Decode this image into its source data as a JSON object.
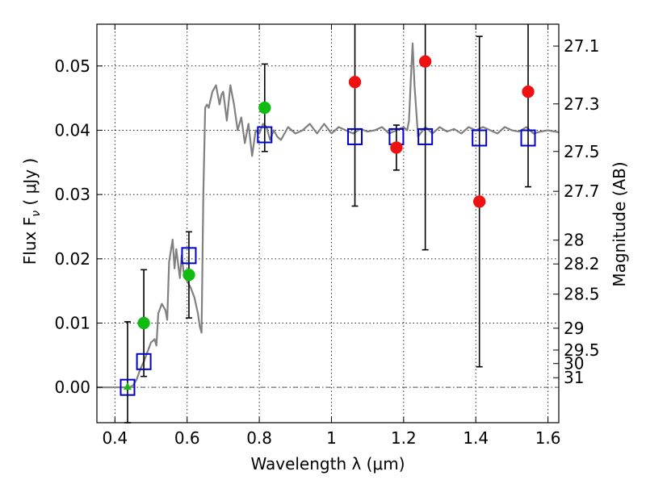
{
  "chart_data": {
    "type": "scatter",
    "xlabel": "Wavelength  λ (μm)",
    "ylabel": "Flux  F",
    "ylabel_sub": "ν",
    "ylabel_unit": " ( μJy )",
    "y2label": "Magnitude (AB)",
    "xlim": [
      0.35,
      1.63
    ],
    "ylim": [
      -0.0055,
      0.0565
    ],
    "grid": true,
    "x_ticks": [
      {
        "value": 0.4,
        "label": "0.4"
      },
      {
        "value": 0.6,
        "label": "0.6"
      },
      {
        "value": 0.8,
        "label": "0.8"
      },
      {
        "value": 1.0,
        "label": "1"
      },
      {
        "value": 1.2,
        "label": "1.2"
      },
      {
        "value": 1.4,
        "label": "1.4"
      },
      {
        "value": 1.6,
        "label": "1.6"
      }
    ],
    "y_ticks": [
      {
        "value": 0.0,
        "label": "0.00"
      },
      {
        "value": 0.01,
        "label": "0.01"
      },
      {
        "value": 0.02,
        "label": "0.02"
      },
      {
        "value": 0.03,
        "label": "0.03"
      },
      {
        "value": 0.04,
        "label": "0.04"
      },
      {
        "value": 0.05,
        "label": "0.05"
      }
    ],
    "y2_ticks": [
      {
        "flux": 0.0531,
        "label": "27.1"
      },
      {
        "flux": 0.0441,
        "label": "27.3"
      },
      {
        "flux": 0.0367,
        "label": "27.5"
      },
      {
        "flux": 0.0305,
        "label": "27.7"
      },
      {
        "flux": 0.0229,
        "label": "28"
      },
      {
        "flux": 0.0192,
        "label": "28.2"
      },
      {
        "flux": 0.0145,
        "label": "28.5"
      },
      {
        "flux": 0.0092,
        "label": "29"
      },
      {
        "flux": 0.0058,
        "label": "29.5"
      },
      {
        "flux": 0.0037,
        "label": "30"
      },
      {
        "flux": 0.0015,
        "label": "31"
      }
    ],
    "series": [
      {
        "name": "model-spectrum",
        "kind": "line",
        "color": "#808080",
        "x": [
          0.35,
          0.43,
          0.44,
          0.45,
          0.46,
          0.47,
          0.48,
          0.49,
          0.5,
          0.51,
          0.515,
          0.52,
          0.53,
          0.54,
          0.545,
          0.55,
          0.56,
          0.565,
          0.57,
          0.58,
          0.585,
          0.59,
          0.6,
          0.61,
          0.62,
          0.63,
          0.635,
          0.64,
          0.645,
          0.65,
          0.655,
          0.66,
          0.67,
          0.68,
          0.69,
          0.695,
          0.7,
          0.71,
          0.72,
          0.73,
          0.74,
          0.75,
          0.76,
          0.77,
          0.78,
          0.79,
          0.8,
          0.81,
          0.82,
          0.83,
          0.84,
          0.85,
          0.86,
          0.87,
          0.88,
          0.9,
          0.92,
          0.94,
          0.96,
          0.98,
          1.0,
          1.02,
          1.04,
          1.06,
          1.08,
          1.1,
          1.12,
          1.14,
          1.16,
          1.18,
          1.2,
          1.21,
          1.215,
          1.22,
          1.225,
          1.23,
          1.24,
          1.26,
          1.28,
          1.3,
          1.32,
          1.34,
          1.36,
          1.38,
          1.4,
          1.42,
          1.44,
          1.46,
          1.48,
          1.5,
          1.52,
          1.54,
          1.56,
          1.58,
          1.6,
          1.63
        ],
        "y": [
          0.0,
          0.0,
          0.0,
          0.0003,
          0.0012,
          0.0028,
          0.004,
          0.0055,
          0.007,
          0.0075,
          0.0065,
          0.0115,
          0.013,
          0.012,
          0.0105,
          0.0195,
          0.023,
          0.0185,
          0.0215,
          0.017,
          0.0205,
          0.018,
          0.0165,
          0.0155,
          0.014,
          0.0115,
          0.0095,
          0.0085,
          0.03,
          0.0435,
          0.044,
          0.0435,
          0.046,
          0.047,
          0.044,
          0.0455,
          0.046,
          0.0415,
          0.047,
          0.044,
          0.04,
          0.042,
          0.038,
          0.041,
          0.036,
          0.04,
          0.0395,
          0.041,
          0.0405,
          0.0385,
          0.04,
          0.039,
          0.0385,
          0.0395,
          0.0405,
          0.0395,
          0.04,
          0.041,
          0.0395,
          0.041,
          0.0395,
          0.0405,
          0.04,
          0.0395,
          0.0402,
          0.0398,
          0.04,
          0.0405,
          0.0395,
          0.04,
          0.0405,
          0.04,
          0.0415,
          0.048,
          0.0535,
          0.047,
          0.039,
          0.0405,
          0.0395,
          0.0405,
          0.0398,
          0.0402,
          0.0395,
          0.0405,
          0.04,
          0.0405,
          0.04,
          0.0395,
          0.0405,
          0.04,
          0.0398,
          0.0405,
          0.0395,
          0.0398,
          0.04,
          0.0397
        ]
      },
      {
        "name": "model-bands",
        "kind": "open-square",
        "color": "#0000cc",
        "x": [
          0.435,
          0.48,
          0.605,
          0.815,
          1.065,
          1.18,
          1.26,
          1.41,
          1.545
        ],
        "y": [
          0.0,
          0.004,
          0.0205,
          0.0393,
          0.039,
          0.039,
          0.039,
          0.0388,
          0.0388
        ]
      },
      {
        "name": "observed-optical",
        "kind": "circle",
        "color": "#11bb11",
        "x": [
          0.48,
          0.605,
          0.815
        ],
        "y": [
          0.01,
          0.0175,
          0.0435
        ],
        "err": [
          0.0083,
          0.0067,
          0.0068
        ]
      },
      {
        "name": "observed-upper-limit",
        "kind": "triangle",
        "color": "#11bb11",
        "x": [
          0.435
        ],
        "y": [
          0.0
        ],
        "err": [
          0.0102
        ]
      },
      {
        "name": "observed-infrared",
        "kind": "circle",
        "color": "#ee1111",
        "x": [
          1.065,
          1.18,
          1.26,
          1.41,
          1.545
        ],
        "y": [
          0.0475,
          0.0373,
          0.0507,
          0.0289,
          0.046
        ],
        "err": [
          0.0193,
          0.0035,
          0.0293,
          0.0257,
          0.0148
        ]
      }
    ]
  }
}
